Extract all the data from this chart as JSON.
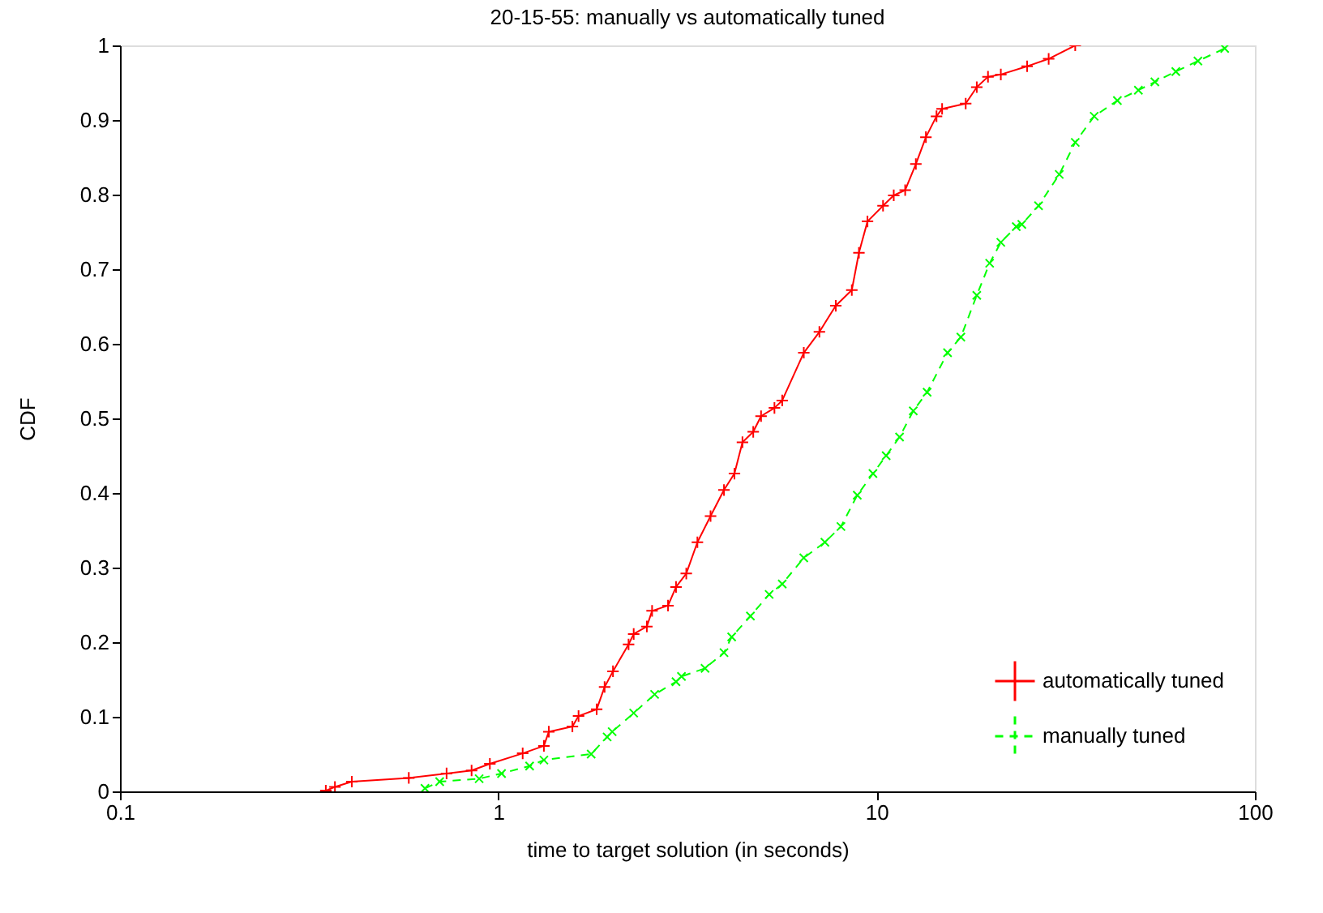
{
  "chart_data": {
    "type": "line",
    "title": "20-15-55: manually vs automatically tuned",
    "xlabel": "time to target solution (in seconds)",
    "ylabel": "CDF",
    "log": "x",
    "xlim": [
      0.1,
      100
    ],
    "xticks": [
      0.1,
      1,
      10,
      100
    ],
    "ylim": [
      0,
      1
    ],
    "yticks": [
      0,
      0.1,
      0.2,
      0.3,
      0.4,
      0.5,
      0.6,
      0.7,
      0.8,
      0.9,
      1
    ],
    "grid": false,
    "legend": "bottom right",
    "series": [
      {
        "name": "automatically tuned",
        "color": "#ff0000",
        "line_style": "solid",
        "marker": "cross",
        "x": [
          0.35,
          0.37,
          0.41,
          0.58,
          0.73,
          0.85,
          0.95,
          1.16,
          1.32,
          1.36,
          1.57,
          1.63,
          1.82,
          1.91,
          2.01,
          2.21,
          2.28,
          2.47,
          2.55,
          2.81,
          2.95,
          3.14,
          3.36,
          3.64,
          3.95,
          4.21,
          4.42,
          4.72,
          4.95,
          5.37,
          5.63,
          6.42,
          7.06,
          7.8,
          8.6,
          8.98,
          9.46,
          10.4,
          11.1,
          11.9,
          12.7,
          13.5,
          14.4,
          14.9,
          17.2,
          18.4,
          19.7,
          21.3,
          25.0,
          28.5,
          33.5
        ],
        "values": [
          0.001,
          0.006,
          0.013,
          0.018,
          0.024,
          0.028,
          0.037,
          0.051,
          0.061,
          0.08,
          0.087,
          0.101,
          0.11,
          0.14,
          0.161,
          0.197,
          0.211,
          0.221,
          0.242,
          0.249,
          0.274,
          0.292,
          0.334,
          0.369,
          0.404,
          0.426,
          0.468,
          0.482,
          0.503,
          0.514,
          0.524,
          0.588,
          0.616,
          0.651,
          0.672,
          0.722,
          0.764,
          0.785,
          0.799,
          0.806,
          0.841,
          0.877,
          0.905,
          0.915,
          0.922,
          0.944,
          0.958,
          0.961,
          0.972,
          0.982,
          1.0
        ]
      },
      {
        "name": "manually tuned",
        "color": "#00ff00",
        "line_style": "dashed",
        "marker": "cross",
        "x": [
          0.64,
          0.7,
          0.89,
          1.02,
          1.21,
          1.32,
          1.76,
          1.94,
          2.0,
          2.28,
          2.59,
          2.95,
          3.05,
          3.52,
          3.95,
          4.14,
          4.64,
          5.2,
          5.63,
          6.42,
          7.3,
          8.05,
          8.89,
          9.78,
          10.6,
          11.5,
          12.5,
          13.6,
          15.4,
          16.7,
          18.4,
          19.9,
          21.3,
          23.4,
          24.2,
          26.8,
          30.4,
          33.5,
          37.6,
          43.3,
          49.2,
          54.4,
          61.8,
          70.7,
          83.2
        ],
        "values": [
          0.004,
          0.013,
          0.017,
          0.024,
          0.034,
          0.042,
          0.05,
          0.073,
          0.08,
          0.105,
          0.13,
          0.147,
          0.154,
          0.165,
          0.186,
          0.207,
          0.235,
          0.264,
          0.278,
          0.313,
          0.334,
          0.355,
          0.397,
          0.426,
          0.45,
          0.475,
          0.51,
          0.535,
          0.588,
          0.609,
          0.665,
          0.708,
          0.736,
          0.757,
          0.76,
          0.785,
          0.827,
          0.87,
          0.905,
          0.926,
          0.94,
          0.951,
          0.965,
          0.979,
          0.996
        ]
      }
    ]
  }
}
